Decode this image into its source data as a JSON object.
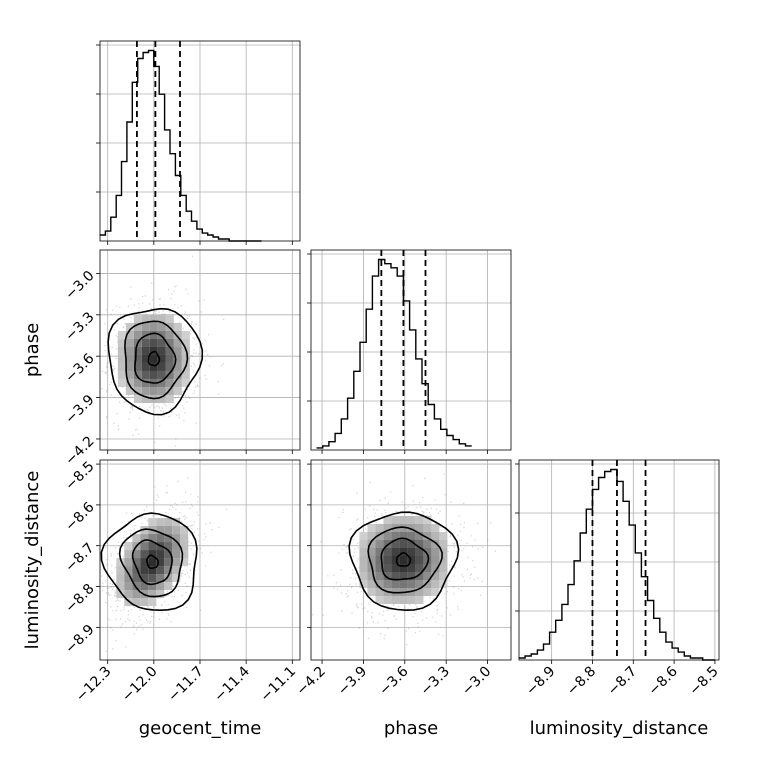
{
  "chart_data": {
    "type": "corner",
    "parameters": [
      "geocent_time",
      "phase",
      "luminosity_distance"
    ],
    "axis_labels": {
      "x": [
        "geocent_time",
        "phase",
        "luminosity_distance"
      ],
      "y": [
        "",
        "phase",
        "luminosity_distance"
      ]
    },
    "ranges": {
      "geocent_time": [
        -12.35,
        -11.05
      ],
      "phase": [
        -4.28,
        -2.83
      ],
      "luminosity_distance": [
        -8.98,
        -8.49
      ]
    },
    "ticks": {
      "geocent_time": [
        -12.3,
        -12.0,
        -11.7,
        -11.4,
        -11.1
      ],
      "phase": [
        -4.2,
        -3.9,
        -3.6,
        -3.3,
        -3.0
      ],
      "luminosity_distance": [
        -8.9,
        -8.8,
        -8.7,
        -8.6,
        -8.5
      ]
    },
    "tick_labels": {
      "geocent_time": [
        "−12.3",
        "−12.0",
        "−11.7",
        "−11.4",
        "−11.1"
      ],
      "phase": [
        "−4.2",
        "−3.9",
        "−3.6",
        "−3.3",
        "−3.0"
      ],
      "luminosity_distance": [
        "−8.9",
        "−8.8",
        "−8.7",
        "−8.6",
        "−8.5"
      ]
    },
    "quantiles": {
      "geocent_time": [
        -12.11,
        -11.99,
        -11.83
      ],
      "phase": [
        -3.77,
        -3.61,
        -3.45
      ],
      "luminosity_distance": [
        -8.8,
        -8.74,
        -8.67
      ]
    },
    "histograms": {
      "geocent_time": {
        "edges": [
          -12.35,
          -12.315,
          -12.28,
          -12.245,
          -12.21,
          -12.175,
          -12.14,
          -12.105,
          -12.07,
          -12.035,
          -12.0,
          -11.965,
          -11.93,
          -11.895,
          -11.86,
          -11.825,
          -11.79,
          -11.755,
          -11.72,
          -11.685,
          -11.65,
          -11.615,
          -11.58,
          -11.545,
          -11.51,
          -11.475,
          -11.44,
          -11.405,
          -11.37,
          -11.335,
          -11.3
        ],
        "counts": [
          3,
          5,
          12,
          23,
          40,
          60,
          80,
          92,
          95,
          96,
          88,
          74,
          56,
          44,
          33,
          23,
          15,
          10,
          6,
          4,
          3,
          2,
          1,
          1,
          0,
          0,
          0,
          0,
          0,
          0
        ]
      },
      "phase": {
        "edges": [
          -4.24,
          -4.195,
          -4.15,
          -4.105,
          -4.06,
          -4.015,
          -3.97,
          -3.925,
          -3.88,
          -3.835,
          -3.79,
          -3.745,
          -3.7,
          -3.655,
          -3.61,
          -3.565,
          -3.52,
          -3.475,
          -3.43,
          -3.385,
          -3.34,
          -3.295,
          -3.25,
          -3.205,
          -3.16,
          -3.115
        ],
        "counts": [
          1,
          2,
          4,
          8,
          15,
          25,
          38,
          52,
          68,
          84,
          92,
          90,
          88,
          84,
          72,
          58,
          44,
          32,
          22,
          15,
          10,
          7,
          5,
          3,
          2
        ]
      },
      "luminosity_distance": {
        "edges": [
          -8.98,
          -8.965,
          -8.95,
          -8.935,
          -8.92,
          -8.905,
          -8.89,
          -8.875,
          -8.86,
          -8.845,
          -8.83,
          -8.815,
          -8.8,
          -8.785,
          -8.77,
          -8.755,
          -8.74,
          -8.725,
          -8.71,
          -8.695,
          -8.68,
          -8.665,
          -8.65,
          -8.635,
          -8.62,
          -8.605,
          -8.59,
          -8.575,
          -8.56,
          -8.545,
          -8.53,
          -8.515,
          -8.5
        ],
        "counts": [
          1,
          2,
          3,
          5,
          8,
          14,
          20,
          28,
          38,
          50,
          64,
          76,
          86,
          92,
          95,
          96,
          90,
          80,
          68,
          54,
          42,
          30,
          21,
          14,
          9,
          6,
          4,
          2,
          1,
          1,
          0,
          0
        ]
      }
    },
    "joint": {
      "phase_vs_geocent_time": {
        "center": [
          -12.0,
          -3.62
        ],
        "sigma": [
          0.13,
          0.19
        ],
        "correlation": 0.0,
        "contour_half_widths": [
          [
            0.035,
            0.05
          ],
          [
            0.13,
            0.18
          ],
          [
            0.2,
            0.28
          ],
          [
            0.3,
            0.38
          ]
        ]
      },
      "luminosity_distance_vs_geocent_time": {
        "center": [
          -12.01,
          -8.74
        ],
        "sigma": [
          0.13,
          0.062
        ],
        "correlation": 0.45,
        "contour_half_widths": [
          [
            0.035,
            0.016
          ],
          [
            0.12,
            0.055
          ],
          [
            0.19,
            0.085
          ],
          [
            0.3,
            0.12
          ]
        ]
      },
      "luminosity_distance_vs_phase": {
        "center": [
          -3.61,
          -8.735
        ],
        "sigma": [
          0.19,
          0.062
        ],
        "correlation": 0.05,
        "contour_half_widths": [
          [
            0.05,
            0.016
          ],
          [
            0.17,
            0.05
          ],
          [
            0.26,
            0.08
          ],
          [
            0.38,
            0.12
          ]
        ]
      }
    },
    "grid": true
  }
}
